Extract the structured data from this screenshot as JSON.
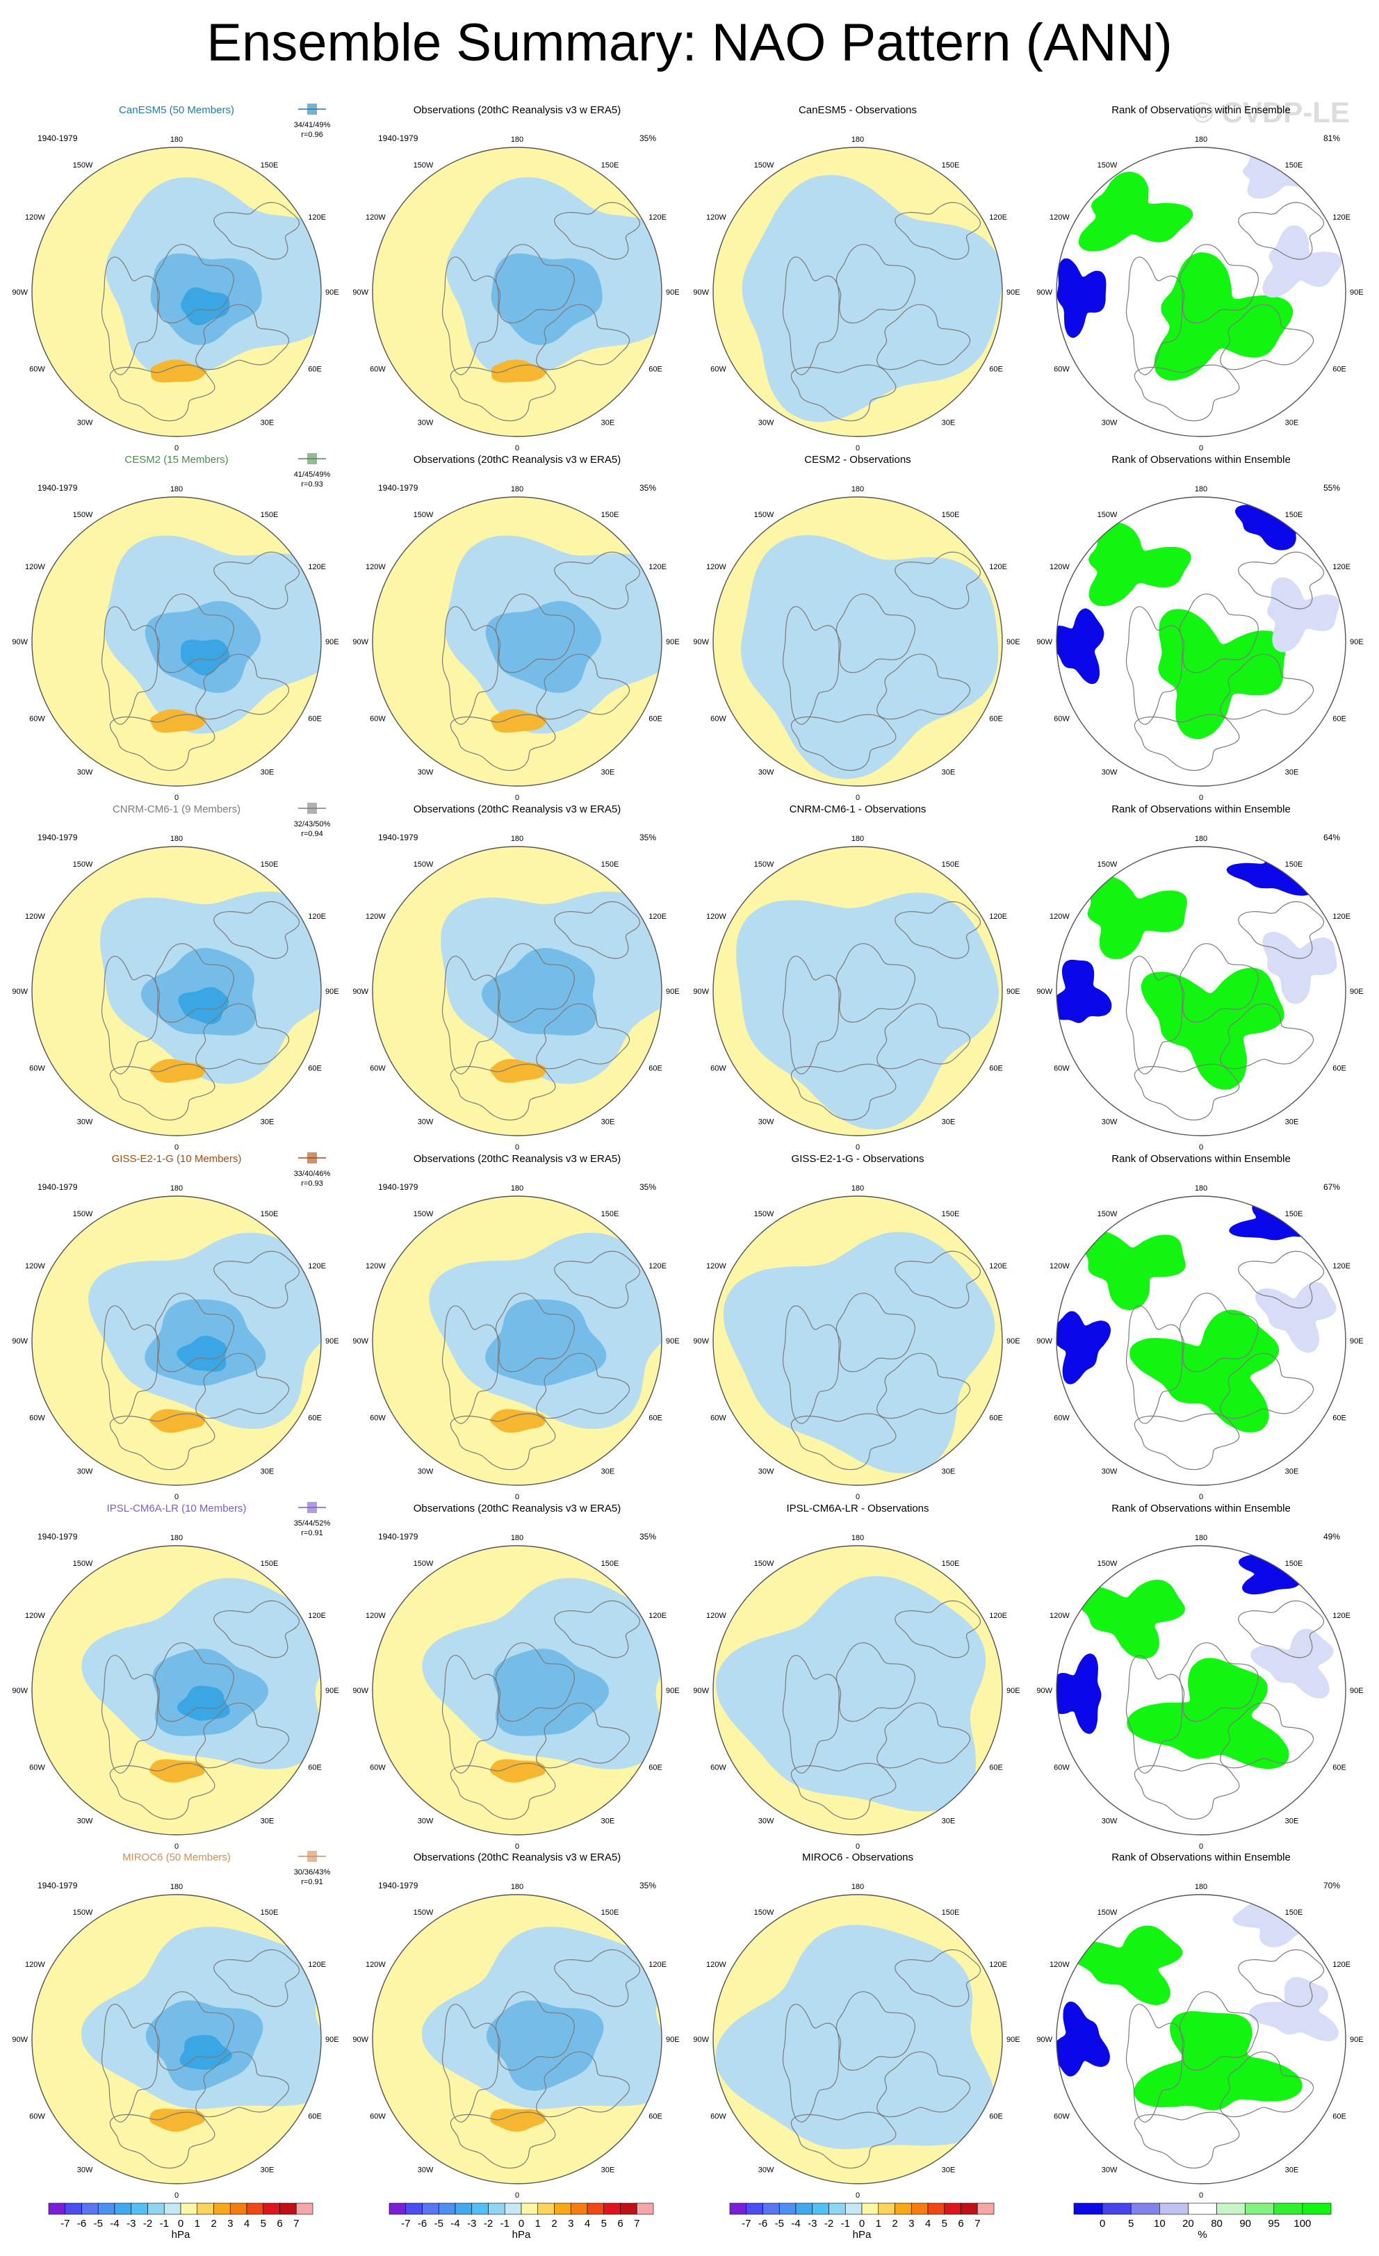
{
  "title": "Ensemble Summary: NAO Pattern (ANN)",
  "watermark": "© CVDP-LE",
  "colors": {
    "ocean_fill": "#fdf6a6",
    "negative_light": "#b5dcf0",
    "negative_mid": "#75bde8",
    "negative_strong": "#3ba6e4",
    "positive_light": "#fbdc8c",
    "positive_mid": "#f7b630",
    "rank_high": "#11f511",
    "rank_low": "#0a08e8",
    "rank_mid": "#d8ddf7",
    "coast": "#7a7a7a"
  },
  "map_labels": {
    "top": "180",
    "bottom": "0",
    "upper_left": "150W",
    "upper_right": "150E",
    "left_upper": "120W",
    "right_upper": "120E",
    "left": "90W",
    "right": "90E",
    "left_lower": "60W",
    "right_lower": "60E",
    "lower_left": "30W",
    "lower_right": "30E"
  },
  "period": "1940-1979",
  "chart_data": {
    "type": "heatmap",
    "variable": "NAO pattern (sea level pressure)",
    "units": "hPa",
    "rows": [
      {
        "model": "CanESM5 (50 Members)",
        "model_color": "#1f7ea6",
        "pct_box": "34/41/49%",
        "r": "r=0.96",
        "obs_title": "Observations (20thC Reanalysis v3 w ERA5)",
        "obs_pct": "35%",
        "diff_title": "CanESM5 - Observations",
        "rank_title": "Rank of Observations within Ensemble",
        "rank_pct": "81%"
      },
      {
        "model": "CESM2 (15 Members)",
        "model_color": "#4e8a4e",
        "pct_box": "41/45/49%",
        "r": "r=0.93",
        "obs_title": "Observations (20thC Reanalysis v3 w ERA5)",
        "obs_pct": "35%",
        "diff_title": "CESM2 - Observations",
        "rank_title": "Rank of Observations within Ensemble",
        "rank_pct": "55%"
      },
      {
        "model": "CNRM-CM6-1 (9 Members)",
        "model_color": "#7b7b7b",
        "pct_box": "32/43/50%",
        "r": "r=0.94",
        "obs_title": "Observations (20thC Reanalysis v3 w ERA5)",
        "obs_pct": "35%",
        "diff_title": "CNRM-CM6-1 - Observations",
        "rank_title": "Rank of Observations within Ensemble",
        "rank_pct": "64%"
      },
      {
        "model": "GISS-E2-1-G (10 Members)",
        "model_color": "#a64a12",
        "pct_box": "33/40/46%",
        "r": "r=0.93",
        "obs_title": "Observations (20thC Reanalysis v3 w ERA5)",
        "obs_pct": "35%",
        "diff_title": "GISS-E2-1-G - Observations",
        "rank_title": "Rank of Observations within Ensemble",
        "rank_pct": "67%"
      },
      {
        "model": "IPSL-CM6A-LR (10 Members)",
        "model_color": "#7a5ccc",
        "pct_box": "35/44/52%",
        "r": "r=0.91",
        "obs_title": "Observations (20thC Reanalysis v3 w ERA5)",
        "obs_pct": "35%",
        "diff_title": "IPSL-CM6A-LR - Observations",
        "rank_title": "Rank of Observations within Ensemble",
        "rank_pct": "49%"
      },
      {
        "model": "MIROC6 (50 Members)",
        "model_color": "#d08f5b",
        "pct_box": "30/36/43%",
        "r": "r=0.91",
        "obs_title": "Observations (20thC Reanalysis v3 w ERA5)",
        "obs_pct": "35%",
        "diff_title": "MIROC6 - Observations",
        "rank_title": "Rank of Observations within Ensemble",
        "rank_pct": "70%"
      }
    ],
    "colorbar_hpa": {
      "labels": [
        "-7",
        "-6",
        "-5",
        "-4",
        "-3",
        "-2",
        "-1",
        "0",
        "1",
        "2",
        "3",
        "4",
        "5",
        "6",
        "7"
      ],
      "unit": "hPa",
      "colors": [
        "#7a1fd6",
        "#4b4df0",
        "#5a75f0",
        "#4d90f2",
        "#42a8f0",
        "#52c0f2",
        "#8fd5f2",
        "#c4e8f5",
        "#fdf6a6",
        "#fbd45e",
        "#f6a817",
        "#f57d10",
        "#f04814",
        "#e0141e",
        "#c00f17",
        "#f5a7a7"
      ]
    },
    "colorbar_rank": {
      "labels": [
        "0",
        "5",
        "10",
        "20",
        "80",
        "90",
        "95",
        "100"
      ],
      "unit": "%",
      "colors": [
        "#0a08e8",
        "#4545ea",
        "#8282ec",
        "#c0c3f2",
        "#ffffff",
        "#c8f5c8",
        "#82f082",
        "#2ef02e",
        "#11f511"
      ]
    }
  }
}
